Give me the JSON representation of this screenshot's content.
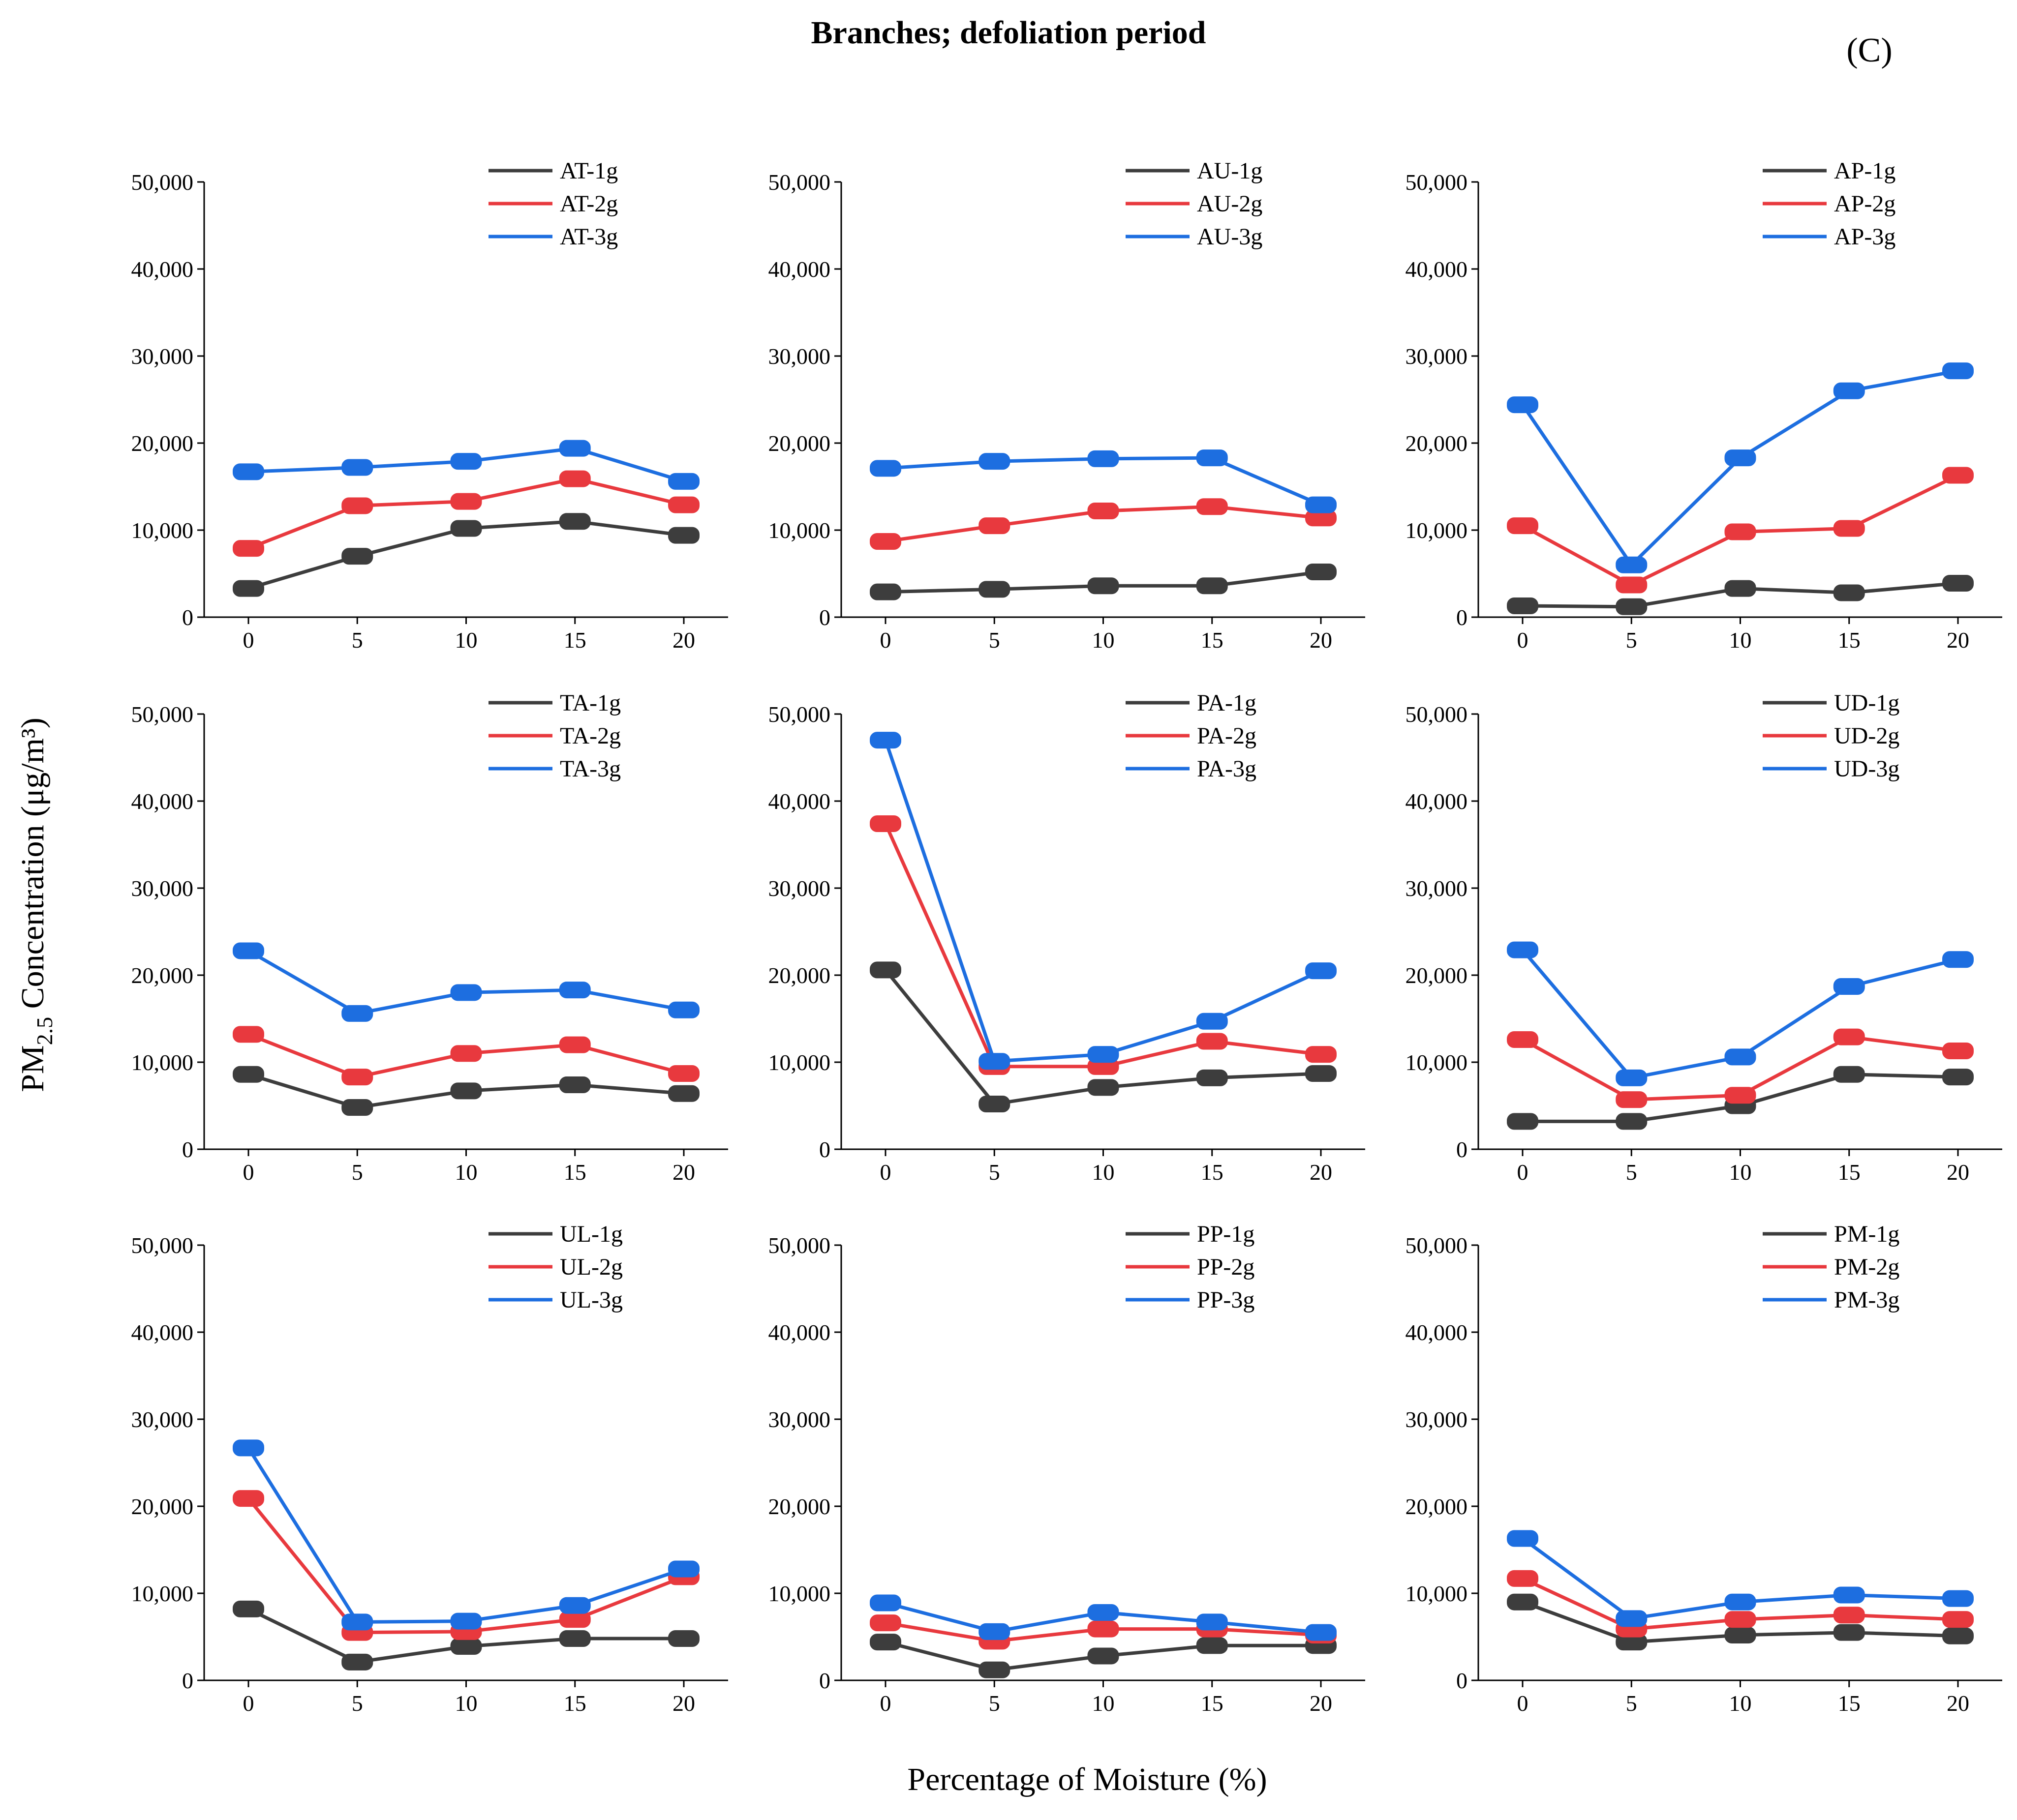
{
  "figure": {
    "title": "Branches; defoliation period",
    "panel_label": "(C)",
    "ylabel_main": "PM",
    "ylabel_sub": "2.5",
    "ylabel_rest": " Concentration (μg/m³)",
    "xlabel": "Percentage of Moisture (%)"
  },
  "colors": {
    "1g": "#3d3d3d",
    "2g": "#e8393e",
    "3g": "#1d6ee0"
  },
  "chart_data": [
    {
      "type": "line",
      "name": "AT",
      "x": [
        0,
        5,
        10,
        15,
        20
      ],
      "ylim": [
        0,
        50000
      ],
      "yticks": [
        "0",
        "10,000",
        "20,000",
        "30,000",
        "40,000",
        "50,000"
      ],
      "xticks": [
        "0",
        "5",
        "10",
        "15",
        "20"
      ],
      "series": [
        {
          "name": "AT-1g",
          "key": "1g",
          "values": [
            3300,
            7000,
            10200,
            11000,
            9400
          ]
        },
        {
          "name": "AT-2g",
          "key": "2g",
          "values": [
            7900,
            12800,
            13300,
            15900,
            12900
          ]
        },
        {
          "name": "AT-3g",
          "key": "3g",
          "values": [
            16700,
            17200,
            17900,
            19400,
            15600
          ]
        }
      ]
    },
    {
      "type": "line",
      "name": "AU",
      "x": [
        0,
        5,
        10,
        15,
        20
      ],
      "ylim": [
        0,
        50000
      ],
      "yticks": [
        "0",
        "10,000",
        "20,000",
        "30,000",
        "40,000",
        "50,000"
      ],
      "xticks": [
        "0",
        "5",
        "10",
        "15",
        "20"
      ],
      "series": [
        {
          "name": "AU-1g",
          "key": "1g",
          "values": [
            2900,
            3200,
            3600,
            3600,
            5200
          ]
        },
        {
          "name": "AU-2g",
          "key": "2g",
          "values": [
            8700,
            10500,
            12200,
            12700,
            11400
          ]
        },
        {
          "name": "AU-3g",
          "key": "3g",
          "values": [
            17100,
            17900,
            18200,
            18300,
            12900
          ]
        }
      ]
    },
    {
      "type": "line",
      "name": "AP",
      "x": [
        0,
        5,
        10,
        15,
        20
      ],
      "ylim": [
        0,
        50000
      ],
      "yticks": [
        "0",
        "10,000",
        "20,000",
        "30,000",
        "40,000",
        "50,000"
      ],
      "xticks": [
        "0",
        "5",
        "10",
        "15",
        "20"
      ],
      "series": [
        {
          "name": "AP-1g",
          "key": "1g",
          "values": [
            1300,
            1200,
            3300,
            2800,
            3900
          ]
        },
        {
          "name": "AP-2g",
          "key": "2g",
          "values": [
            10500,
            3700,
            9800,
            10200,
            16300
          ]
        },
        {
          "name": "AP-3g",
          "key": "3g",
          "values": [
            24400,
            6000,
            18300,
            26000,
            28300
          ]
        }
      ]
    },
    {
      "type": "line",
      "name": "TA",
      "x": [
        0,
        5,
        10,
        15,
        20
      ],
      "ylim": [
        0,
        50000
      ],
      "yticks": [
        "0",
        "10,000",
        "20,000",
        "30,000",
        "40,000",
        "50,000"
      ],
      "xticks": [
        "0",
        "5",
        "10",
        "15",
        "20"
      ],
      "series": [
        {
          "name": "TA-1g",
          "key": "1g",
          "values": [
            8600,
            4800,
            6700,
            7400,
            6400
          ]
        },
        {
          "name": "TA-2g",
          "key": "2g",
          "values": [
            13200,
            8300,
            11000,
            12000,
            8700
          ]
        },
        {
          "name": "TA-3g",
          "key": "3g",
          "values": [
            22800,
            15600,
            18000,
            18300,
            16000
          ]
        }
      ]
    },
    {
      "type": "line",
      "name": "PA",
      "x": [
        0,
        5,
        10,
        15,
        20
      ],
      "ylim": [
        0,
        50000
      ],
      "yticks": [
        "0",
        "10,000",
        "20,000",
        "30,000",
        "40,000",
        "50,000"
      ],
      "xticks": [
        "0",
        "5",
        "10",
        "15",
        "20"
      ],
      "series": [
        {
          "name": "PA-1g",
          "key": "1g",
          "values": [
            20600,
            5200,
            7100,
            8200,
            8700
          ]
        },
        {
          "name": "PA-2g",
          "key": "2g",
          "values": [
            37400,
            9500,
            9500,
            12400,
            10900
          ]
        },
        {
          "name": "PA-3g",
          "key": "3g",
          "values": [
            47000,
            10100,
            10900,
            14700,
            20500
          ]
        }
      ]
    },
    {
      "type": "line",
      "name": "UD",
      "x": [
        0,
        5,
        10,
        15,
        20
      ],
      "ylim": [
        0,
        50000
      ],
      "yticks": [
        "0",
        "10,000",
        "20,000",
        "30,000",
        "40,000",
        "50,000"
      ],
      "xticks": [
        "0",
        "5",
        "10",
        "15",
        "20"
      ],
      "series": [
        {
          "name": "UD-1g",
          "key": "1g",
          "values": [
            3200,
            3200,
            5000,
            8600,
            8300
          ]
        },
        {
          "name": "UD-2g",
          "key": "2g",
          "values": [
            12600,
            5700,
            6200,
            12900,
            11300
          ]
        },
        {
          "name": "UD-3g",
          "key": "3g",
          "values": [
            22900,
            8200,
            10600,
            18700,
            21800
          ]
        }
      ]
    },
    {
      "type": "line",
      "name": "UL",
      "x": [
        0,
        5,
        10,
        15,
        20
      ],
      "ylim": [
        0,
        50000
      ],
      "yticks": [
        "0",
        "10,000",
        "20,000",
        "30,000",
        "40,000",
        "50,000"
      ],
      "xticks": [
        "0",
        "5",
        "10",
        "15",
        "20"
      ],
      "series": [
        {
          "name": "UL-1g",
          "key": "1g",
          "values": [
            8200,
            2100,
            3900,
            4800,
            4800
          ]
        },
        {
          "name": "UL-2g",
          "key": "2g",
          "values": [
            20900,
            5500,
            5600,
            7000,
            11900
          ]
        },
        {
          "name": "UL-3g",
          "key": "3g",
          "values": [
            26700,
            6700,
            6800,
            8600,
            12800
          ]
        }
      ]
    },
    {
      "type": "line",
      "name": "PP",
      "x": [
        0,
        5,
        10,
        15,
        20
      ],
      "ylim": [
        0,
        50000
      ],
      "yticks": [
        "0",
        "10,000",
        "20,000",
        "30,000",
        "40,000",
        "50,000"
      ],
      "xticks": [
        "0",
        "5",
        "10",
        "15",
        "20"
      ],
      "series": [
        {
          "name": "PP-1g",
          "key": "1g",
          "values": [
            4400,
            1200,
            2800,
            4000,
            4000
          ]
        },
        {
          "name": "PP-2g",
          "key": "2g",
          "values": [
            6600,
            4500,
            5900,
            5900,
            5200
          ]
        },
        {
          "name": "PP-3g",
          "key": "3g",
          "values": [
            8900,
            5600,
            7800,
            6700,
            5500
          ]
        }
      ]
    },
    {
      "type": "line",
      "name": "PM",
      "x": [
        0,
        5,
        10,
        15,
        20
      ],
      "ylim": [
        0,
        50000
      ],
      "yticks": [
        "0",
        "10,000",
        "20,000",
        "30,000",
        "40,000",
        "50,000"
      ],
      "xticks": [
        "0",
        "5",
        "10",
        "15",
        "20"
      ],
      "series": [
        {
          "name": "PM-1g",
          "key": "1g",
          "values": [
            9000,
            4400,
            5200,
            5500,
            5100
          ]
        },
        {
          "name": "PM-2g",
          "key": "2g",
          "values": [
            11700,
            5900,
            7000,
            7500,
            7000
          ]
        },
        {
          "name": "PM-3g",
          "key": "3g",
          "values": [
            16300,
            7100,
            9000,
            9800,
            9400
          ]
        }
      ]
    }
  ]
}
